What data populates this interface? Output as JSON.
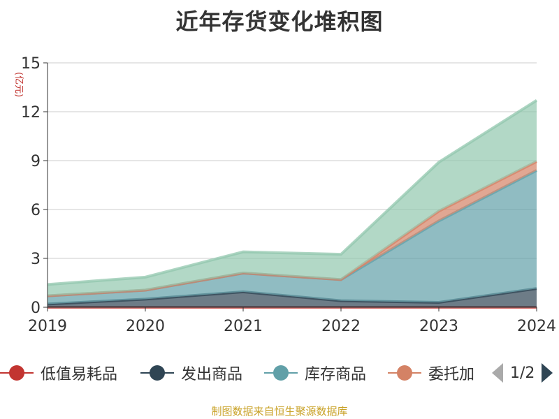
{
  "title": "近年存货变化堆积图",
  "unit": "(亿元)",
  "source": "制图数据来自恒生聚源数据库",
  "legend": {
    "items": [
      {
        "name": "低值易耗品",
        "color": "#c23531"
      },
      {
        "name": "发出商品",
        "color": "#2f4554"
      },
      {
        "name": "库存商品",
        "color": "#61a0a8"
      },
      {
        "name": "委托加",
        "color": "#d48265"
      }
    ],
    "page": "1/2"
  },
  "chart_data": {
    "type": "area",
    "stacked": true,
    "title": "近年存货变化堆积图",
    "ylabel": "(亿元)",
    "x": [
      "2019",
      "2020",
      "2021",
      "2022",
      "2023",
      "2024"
    ],
    "y_ticks": [
      0,
      3,
      6,
      9,
      12,
      15
    ],
    "ylim": [
      0,
      15
    ],
    "grid": true,
    "series": [
      {
        "name": "低值易耗品",
        "color": "#c23531",
        "values": [
          0,
          0,
          0,
          0,
          0,
          0
        ]
      },
      {
        "name": "发出商品",
        "color": "#2f4554",
        "values": [
          0.2,
          0.5,
          0.95,
          0.4,
          0.3,
          1.15
        ]
      },
      {
        "name": "库存商品",
        "color": "#61a0a8",
        "values": [
          0.5,
          0.55,
          1.15,
          1.3,
          5.0,
          7.25
        ]
      },
      {
        "name": "委托加",
        "color": "#d48265",
        "values": [
          0,
          0,
          0,
          0,
          0.6,
          0.55
        ]
      },
      {
        "color": "#91c7ae",
        "values": [
          0.7,
          0.8,
          1.3,
          1.55,
          3.0,
          3.75
        ]
      }
    ]
  }
}
